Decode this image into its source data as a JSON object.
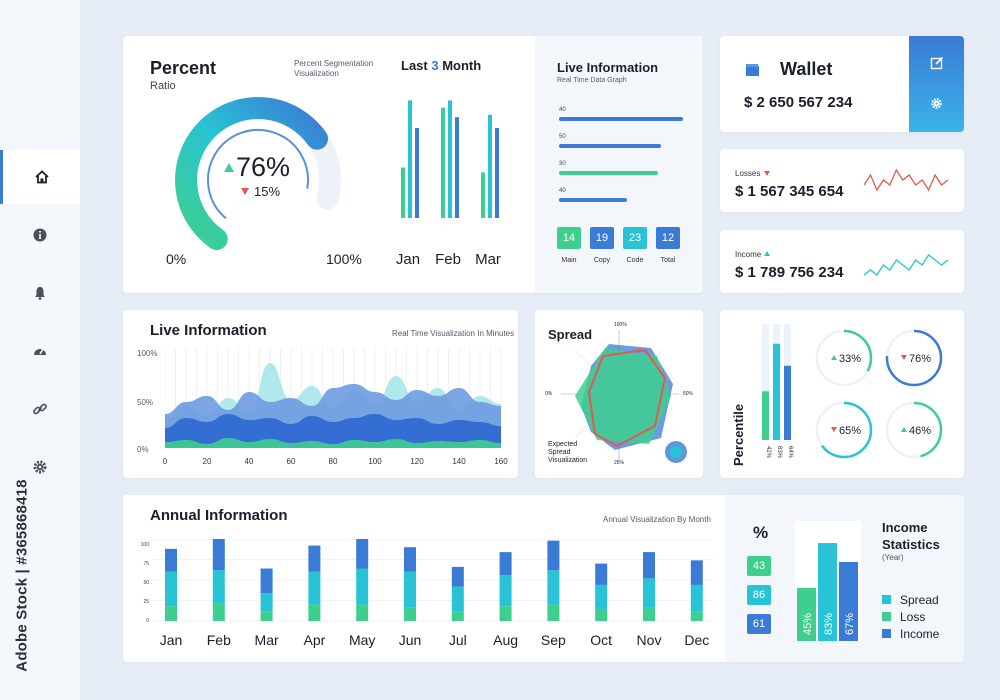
{
  "sidebar": {
    "items": [
      {
        "icon": "home-icon",
        "active": true
      },
      {
        "icon": "info-icon",
        "active": false
      },
      {
        "icon": "bell-icon",
        "active": false
      },
      {
        "icon": "gauge-icon",
        "active": false
      },
      {
        "icon": "link-icon",
        "active": false
      },
      {
        "icon": "gear-icon",
        "active": false
      }
    ]
  },
  "watermark": "Adobe Stock | #365868418",
  "percent_card": {
    "title": "Percent",
    "subtitle": "Ratio",
    "caption": "Percent Segmentation Visualization",
    "value": "76%",
    "change": "15%",
    "gauge_fraction": 0.76,
    "min_label": "0%",
    "max_label": "100%"
  },
  "last_month_card": {
    "title_prefix": "Last",
    "title_number": "3",
    "title_suffix": "Month"
  },
  "live_info_card": {
    "title": "Live Information",
    "caption": "Real Time Data Graph",
    "bars": [
      {
        "label": "40",
        "fraction": 1.0,
        "color": "#3a7bd5"
      },
      {
        "label": "50",
        "fraction": 0.82,
        "color": "#3a7bd5"
      },
      {
        "label": "30",
        "fraction": 0.8,
        "color": "#3ecf8e"
      },
      {
        "label": "40",
        "fraction": 0.55,
        "color": "#3a7bd5"
      }
    ],
    "boxes": [
      {
        "value": "14",
        "label": "Main",
        "color": "#3ecf8e"
      },
      {
        "value": "19",
        "label": "Copy",
        "color": "#3a7bd5"
      },
      {
        "value": "23",
        "label": "Code",
        "color": "#28c3d4"
      },
      {
        "value": "12",
        "label": "Total",
        "color": "#3a7bd5"
      }
    ]
  },
  "wallet": {
    "title": "Wallet",
    "amount": "$ 2 650 567 234",
    "edit_icon": "edit-icon",
    "settings_icon": "gear-icon"
  },
  "losses": {
    "label": "Losses",
    "amount": "$ 1 567 345 654",
    "trend_color": "#e05a4f",
    "trend": [
      5,
      7,
      4,
      6,
      5,
      8,
      6,
      7,
      5,
      6,
      4,
      7,
      5,
      6
    ]
  },
  "income": {
    "label": "Income",
    "amount": "$ 1 789 756 234",
    "trend_color": "#28c3d4",
    "trend": [
      3,
      4,
      3,
      5,
      4,
      6,
      5,
      4,
      6,
      5,
      7,
      6,
      5,
      6
    ]
  },
  "live_info2": {
    "title": "Live Information",
    "caption": "Real Time Visualization In Minutes",
    "y_labels": [
      "100%",
      "50%",
      "0%"
    ],
    "x_labels": [
      "0",
      "20",
      "40",
      "60",
      "80",
      "100",
      "120",
      "140",
      "160"
    ]
  },
  "spread_card": {
    "title": "Spread",
    "top_label": "100%",
    "right_label": "50%",
    "left_label": "0%",
    "bottom_label": "25%",
    "caption": "Expected Spread Visualization"
  },
  "percentile_card": {
    "title": "Percentile",
    "bars": [
      {
        "label": "42%",
        "value": 42,
        "color": "#3ecf8e"
      },
      {
        "label": "83%",
        "value": 83,
        "color": "#28c3d4"
      },
      {
        "label": "64%",
        "value": 64,
        "color": "#3a7bd5"
      }
    ],
    "rings": [
      {
        "value": "33%",
        "fraction": 0.33,
        "dir": "up",
        "color": "#3ecf8e"
      },
      {
        "value": "76%",
        "fraction": 0.76,
        "dir": "down",
        "color": "#3a7bd5"
      },
      {
        "value": "65%",
        "fraction": 0.65,
        "dir": "down",
        "color": "#28c3d4"
      },
      {
        "value": "46%",
        "fraction": 0.46,
        "dir": "up",
        "color": "#3ecf8e"
      }
    ]
  },
  "annual_card": {
    "title": "Annual Information",
    "caption": "Annual Visualization By Month",
    "y_labels": [
      "100",
      "75",
      "50",
      "25",
      "0"
    ]
  },
  "income_stats": {
    "symbol": "%",
    "title_line1": "Income",
    "title_line2": "Statistics",
    "subtitle": "(Year)",
    "boxes": [
      {
        "value": "43",
        "color": "#3ecf8e"
      },
      {
        "value": "86",
        "color": "#28c3d4"
      },
      {
        "value": "61",
        "color": "#3a7bd5"
      }
    ],
    "legend": [
      {
        "label": "Spread",
        "color": "#28c3d4"
      },
      {
        "label": "Loss",
        "color": "#3ecf8e"
      },
      {
        "label": "Income",
        "color": "#3a7bd5"
      }
    ]
  },
  "chart_data": [
    {
      "type": "bar",
      "title": "Last 3 Month",
      "categories": [
        "Jan",
        "Feb",
        "Mar"
      ],
      "series": [
        {
          "values": [
            42,
            92,
            38
          ],
          "color": "#3ecf8e"
        },
        {
          "values": [
            98,
            98,
            86
          ],
          "color": "#28c3d4"
        },
        {
          "values": [
            75,
            84,
            75
          ],
          "color": "#3a7bd5"
        }
      ],
      "ylim": [
        0,
        100
      ]
    },
    {
      "type": "area",
      "title": "Live Information",
      "x": [
        0,
        10,
        20,
        30,
        40,
        50,
        60,
        70,
        80,
        90,
        100,
        110,
        120,
        130,
        140,
        150,
        160
      ],
      "series": [
        {
          "values": [
            28,
            42,
            32,
            50,
            36,
            85,
            48,
            62,
            40,
            58,
            44,
            72,
            46,
            60,
            38,
            52,
            44
          ],
          "color": "#a9e6ea"
        },
        {
          "values": [
            34,
            46,
            52,
            38,
            56,
            46,
            50,
            42,
            60,
            64,
            56,
            48,
            58,
            52,
            60,
            46,
            42
          ],
          "color": "#6d9be0"
        },
        {
          "values": [
            20,
            30,
            26,
            34,
            28,
            30,
            24,
            32,
            26,
            30,
            34,
            28,
            30,
            24,
            28,
            26,
            22
          ],
          "color": "#2e68d0"
        },
        {
          "values": [
            6,
            8,
            4,
            10,
            6,
            9,
            5,
            7,
            4,
            8,
            6,
            9,
            5,
            7,
            6,
            8,
            5
          ],
          "color": "#3ecf8e"
        }
      ],
      "ylim": [
        0,
        100
      ]
    },
    {
      "type": "bar",
      "title": "Annual Information",
      "categories": [
        "Jan",
        "Feb",
        "Mar",
        "Apr",
        "May",
        "Jun",
        "Jul",
        "Aug",
        "Sep",
        "Oct",
        "Nov",
        "Dec"
      ],
      "series": [
        {
          "name": "Loss",
          "values": [
            18,
            22,
            12,
            20,
            20,
            16,
            12,
            18,
            20,
            14,
            16,
            12
          ],
          "color": "#3ecf8e"
        },
        {
          "name": "Spread",
          "values": [
            42,
            40,
            22,
            40,
            44,
            44,
            30,
            38,
            42,
            30,
            36,
            32
          ],
          "color": "#28c3d4"
        },
        {
          "name": "Income",
          "values": [
            28,
            40,
            30,
            32,
            38,
            30,
            24,
            28,
            36,
            26,
            32,
            30
          ],
          "color": "#3a7bd5"
        }
      ],
      "ylim": [
        0,
        100
      ]
    },
    {
      "type": "bar",
      "title": "Income Statistics",
      "categories": [
        "45%",
        "83%",
        "67%"
      ],
      "values": [
        45,
        83,
        67
      ],
      "colors": [
        "#3ecf8e",
        "#28c3d4",
        "#3a7bd5"
      ],
      "ylim": [
        0,
        100
      ]
    }
  ]
}
